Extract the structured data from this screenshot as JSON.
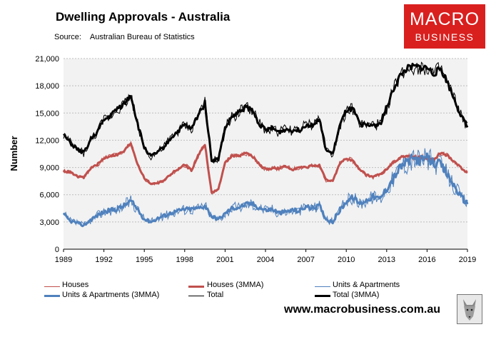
{
  "header": {
    "title": "Dwelling Approvals - Australia",
    "source_label": "Source:",
    "source_value": "Australian Bureau of Statistics"
  },
  "logo": {
    "line1": "MACRO",
    "line2": "BUSINESS"
  },
  "footer": {
    "website": "www.macrobusiness.com.au"
  },
  "colors": {
    "houses": "#c0504d",
    "units": "#4f81bd",
    "total": "#000000",
    "plot_bg": "#f2f2f2",
    "brand": "#d9201f"
  },
  "chart_data": {
    "type": "line",
    "ylabel": "Number",
    "xlabel": "",
    "ylim": [
      0,
      21000
    ],
    "xlim": [
      1989,
      2019
    ],
    "yticks": [
      0,
      3000,
      6000,
      9000,
      12000,
      15000,
      18000,
      21000
    ],
    "ytick_labels": [
      "0",
      "3,000",
      "6,000",
      "9,000",
      "12,000",
      "15,000",
      "18,000",
      "21,000"
    ],
    "xticks": [
      1989,
      1992,
      1995,
      1998,
      2001,
      2004,
      2007,
      2010,
      2013,
      2016,
      2019
    ],
    "xtick_labels": [
      "1989",
      "1992",
      "1995",
      "1998",
      "2001",
      "2004",
      "2007",
      "2010",
      "2013",
      "2016",
      "2019"
    ],
    "legend": [
      "Houses",
      "Houses (3MMA)",
      "Units & Apartments",
      "Units & Apartments (3MMA)",
      "Total",
      "Total (3MMA)"
    ],
    "series": [
      {
        "name": "Houses (3MMA)",
        "x": [
          1989,
          1989.5,
          1990,
          1990.5,
          1991,
          1991.5,
          1992,
          1992.5,
          1993,
          1993.5,
          1994,
          1994.5,
          1995,
          1995.5,
          1996,
          1996.5,
          1997,
          1997.5,
          1998,
          1998.5,
          1999,
          1999.5,
          2000,
          2000.5,
          2001,
          2001.5,
          2002,
          2002.5,
          2003,
          2003.5,
          2004,
          2004.5,
          2005,
          2005.5,
          2006,
          2006.5,
          2007,
          2007.5,
          2008,
          2008.5,
          2009,
          2009.5,
          2010,
          2010.5,
          2011,
          2011.5,
          2012,
          2012.5,
          2013,
          2013.5,
          2014,
          2014.5,
          2015,
          2015.5,
          2016,
          2016.5,
          2017,
          2017.5,
          2018,
          2018.5,
          2019
        ],
        "values": [
          8600,
          8500,
          8000,
          7900,
          8900,
          9300,
          10000,
          10300,
          10400,
          10800,
          11700,
          9400,
          7800,
          7200,
          7300,
          7600,
          8300,
          8800,
          9300,
          8700,
          10300,
          11600,
          6200,
          6600,
          9500,
          10300,
          10300,
          10600,
          10300,
          9400,
          8800,
          8900,
          8900,
          9100,
          8800,
          9000,
          9000,
          9200,
          9200,
          7600,
          7500,
          9400,
          10000,
          9700,
          8800,
          8200,
          7900,
          8300,
          8800,
          9600,
          10100,
          10300,
          10100,
          10200,
          10000,
          9800,
          10600,
          10300,
          9700,
          9000,
          8400
        ]
      },
      {
        "name": "Units & Apartments (3MMA)",
        "x": [
          1989,
          1989.5,
          1990,
          1990.5,
          1991,
          1991.5,
          1992,
          1992.5,
          1993,
          1993.5,
          1994,
          1994.5,
          1995,
          1995.5,
          1996,
          1996.5,
          1997,
          1997.5,
          1998,
          1998.5,
          1999,
          1999.5,
          2000,
          2000.5,
          2001,
          2001.5,
          2002,
          2002.5,
          2003,
          2003.5,
          2004,
          2004.5,
          2005,
          2005.5,
          2006,
          2006.5,
          2007,
          2007.5,
          2008,
          2008.5,
          2009,
          2009.5,
          2010,
          2010.5,
          2011,
          2011.5,
          2012,
          2012.5,
          2013,
          2013.5,
          2014,
          2014.5,
          2015,
          2015.5,
          2016,
          2016.5,
          2017,
          2017.5,
          2018,
          2018.5,
          2019
        ],
        "values": [
          3800,
          3100,
          2900,
          2600,
          3200,
          3700,
          4100,
          4300,
          4400,
          4800,
          5300,
          4400,
          3300,
          3000,
          3400,
          3700,
          4000,
          4200,
          4400,
          4400,
          4500,
          4800,
          3600,
          3300,
          3900,
          4500,
          4600,
          4900,
          5000,
          4600,
          4300,
          4400,
          4000,
          4100,
          4300,
          4200,
          4700,
          4500,
          4800,
          3300,
          3000,
          4200,
          5300,
          5700,
          5000,
          5400,
          5800,
          5500,
          6700,
          7800,
          9000,
          9600,
          10000,
          9800,
          10000,
          9500,
          9300,
          8200,
          7000,
          5800,
          5000
        ]
      },
      {
        "name": "Total (3MMA)",
        "x": [
          1989,
          1989.5,
          1990,
          1990.5,
          1991,
          1991.5,
          1992,
          1992.5,
          1993,
          1993.5,
          1994,
          1994.5,
          1995,
          1995.5,
          1996,
          1996.5,
          1997,
          1997.5,
          1998,
          1998.5,
          1999,
          1999.5,
          2000,
          2000.5,
          2001,
          2001.5,
          2002,
          2002.5,
          2003,
          2003.5,
          2004,
          2004.5,
          2005,
          2005.5,
          2006,
          2006.5,
          2007,
          2007.5,
          2008,
          2008.5,
          2009,
          2009.5,
          2010,
          2010.5,
          2011,
          2011.5,
          2012,
          2012.5,
          2013,
          2013.5,
          2014,
          2014.5,
          2015,
          2015.5,
          2016,
          2016.5,
          2017,
          2017.5,
          2018,
          2018.5,
          2019
        ],
        "values": [
          12600,
          11700,
          11000,
          10600,
          12000,
          12900,
          14200,
          14700,
          15500,
          16000,
          17000,
          13800,
          11200,
          10200,
          10700,
          11300,
          12300,
          13000,
          13700,
          13200,
          14800,
          16200,
          9800,
          9900,
          13300,
          14600,
          15000,
          15700,
          15300,
          13900,
          13100,
          13300,
          12900,
          13200,
          13100,
          13100,
          13700,
          13700,
          14300,
          10900,
          10500,
          13500,
          15300,
          15400,
          13800,
          13600,
          13700,
          13700,
          15500,
          17600,
          19100,
          19900,
          20100,
          20000,
          20000,
          19300,
          19900,
          18400,
          16600,
          14800,
          13400
        ]
      }
    ]
  }
}
